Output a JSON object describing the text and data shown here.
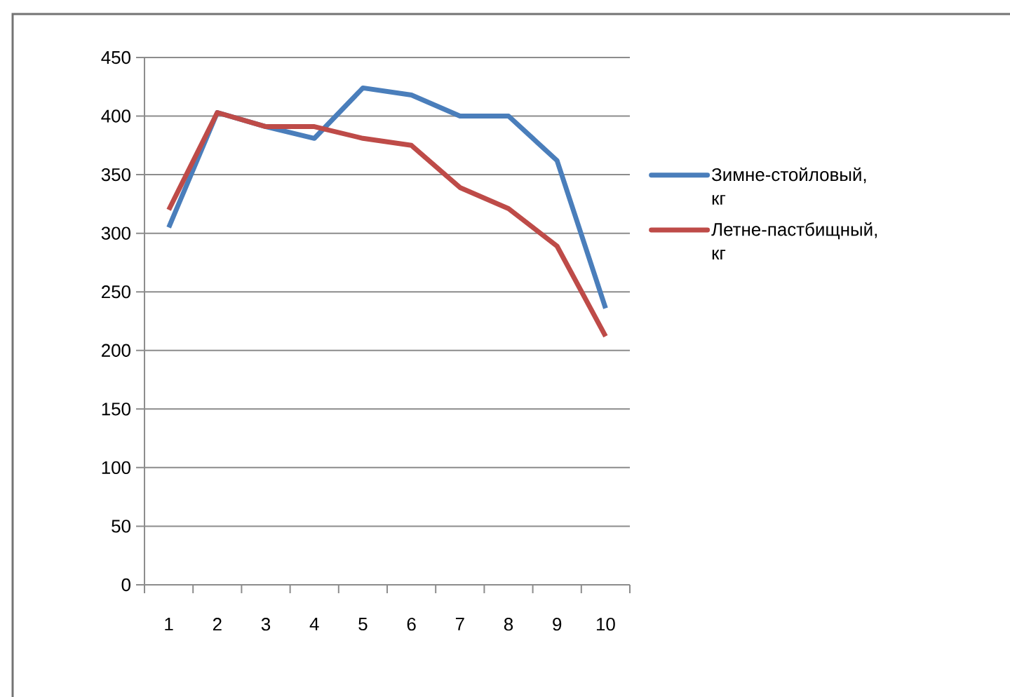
{
  "chart_data": {
    "type": "line",
    "categories": [
      "1",
      "2",
      "3",
      "4",
      "5",
      "6",
      "7",
      "8",
      "9",
      "10"
    ],
    "series": [
      {
        "name": "Зимне-стойловый, кг",
        "color": "#4a7ebb",
        "values": [
          305,
          403,
          391,
          381,
          424,
          418,
          400,
          400,
          362,
          236
        ]
      },
      {
        "name": "Летне-пастбищный, кг",
        "color": "#be4b48",
        "values": [
          320,
          403,
          391,
          391,
          381,
          375,
          339,
          321,
          289,
          212
        ]
      }
    ],
    "ylim": [
      0,
      450
    ],
    "yticks": [
      0,
      50,
      100,
      150,
      200,
      250,
      300,
      350,
      400,
      450
    ],
    "grid": "y",
    "legend": "right",
    "marker": "none",
    "line_style": "solid"
  }
}
